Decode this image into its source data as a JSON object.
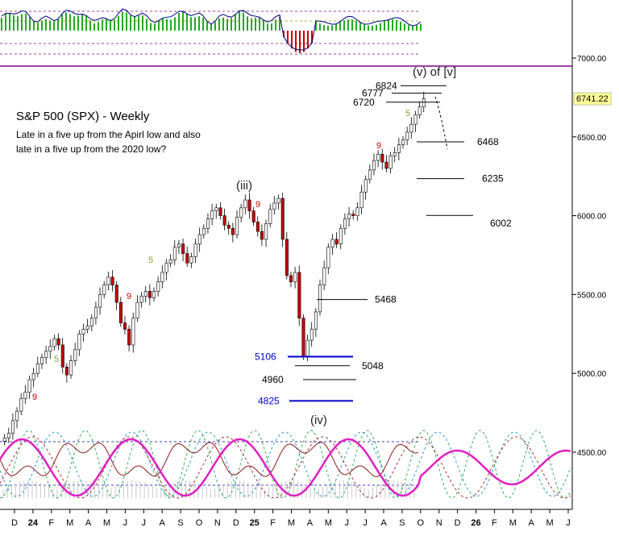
{
  "chart_data": {
    "type": "candlestick",
    "title": "S&P 500 (SPX) - Weekly",
    "subtitle_lines": [
      "Late in a five up from the Apirl low and also",
      "late in a five up from the 2020 low?"
    ],
    "last_price_label": "6741.22",
    "last_price": 6741.22,
    "y_ticks": [
      {
        "value": 7000,
        "label": "7000.00"
      },
      {
        "value": 6500,
        "label": "6500.00"
      },
      {
        "value": 6000,
        "label": "6000.00"
      },
      {
        "value": 5500,
        "label": "5500.00"
      },
      {
        "value": 5000,
        "label": "5000.00"
      },
      {
        "value": 4500,
        "label": "4500.00"
      }
    ],
    "x_ticks": [
      "D",
      "24",
      "F",
      "M",
      "A",
      "M",
      "J",
      "J",
      "A",
      "S",
      "O",
      "N",
      "D",
      "25",
      "F",
      "M",
      "A",
      "M",
      "J",
      "J",
      "A",
      "S",
      "O",
      "N",
      "D",
      "26",
      "F",
      "M",
      "A",
      "M",
      "J"
    ],
    "wave_labels": [
      "(v) of [v]",
      "(iii)",
      "(iv)"
    ],
    "count_labels": [
      {
        "text": "9",
        "color": "#cc0000"
      },
      {
        "text": "5",
        "color": "#999933"
      },
      {
        "text": "9",
        "color": "#cc0000"
      },
      {
        "text": "5",
        "color": "#999933"
      },
      {
        "text": "9",
        "color": "#cc0000"
      },
      {
        "text": "5",
        "color": "#999933"
      },
      {
        "text": "9",
        "color": "#cc0000"
      }
    ],
    "target_levels": [
      {
        "value": 6824,
        "label": "6824"
      },
      {
        "value": 6777,
        "label": "6777"
      },
      {
        "value": 6720,
        "label": "6720"
      },
      {
        "value": 6468,
        "label": "6468"
      },
      {
        "value": 6235,
        "label": "6235"
      },
      {
        "value": 6002,
        "label": "6002"
      },
      {
        "value": 5468,
        "label": "5468"
      }
    ],
    "support_levels": [
      {
        "value": 5106,
        "label": "5106",
        "color": "#0000cc"
      },
      {
        "value": 5048,
        "label": "5048",
        "color": "#000000"
      },
      {
        "value": 4960,
        "label": "4960",
        "color": "#000000"
      },
      {
        "value": 4825,
        "label": "4825",
        "color": "#0000cc"
      }
    ],
    "closes": [
      4590,
      4620,
      4700,
      4760,
      4840,
      4880,
      4960,
      5000,
      5060,
      5100,
      5140,
      5170,
      5220,
      5180,
      5040,
      4990,
      5080,
      5150,
      5250,
      5280,
      5300,
      5350,
      5420,
      5500,
      5560,
      5610,
      5560,
      5450,
      5320,
      5280,
      5180,
      5350,
      5450,
      5490,
      5520,
      5480,
      5520,
      5580,
      5640,
      5700,
      5720,
      5800,
      5820,
      5760,
      5700,
      5740,
      5820,
      5880,
      5920,
      5980,
      6030,
      6050,
      6000,
      5940,
      5920,
      5880,
      5990,
      6050,
      6100,
      6030,
      5960,
      5900,
      5850,
      5950,
      6040,
      6080,
      6110,
      5850,
      5620,
      5580,
      5640,
      5350,
      5110,
      5210,
      5280,
      5390,
      5560,
      5670,
      5800,
      5850,
      5820,
      5920,
      5980,
      6010,
      6000,
      6050,
      6150,
      6230,
      6290,
      6350,
      6390,
      6340,
      6300,
      6380,
      6400,
      6450,
      6480,
      6530,
      6580,
      6640,
      6690,
      6741.22
    ]
  }
}
